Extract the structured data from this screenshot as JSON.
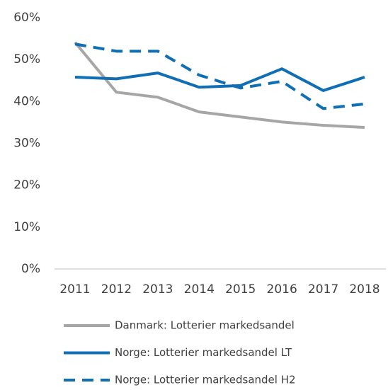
{
  "chart_data": {
    "type": "line",
    "categories": [
      "2011",
      "2012",
      "2013",
      "2014",
      "2015",
      "2016",
      "2017",
      "2018"
    ],
    "series": [
      {
        "name": "Danmark: Lotterier markedsandel",
        "color": "#a6a6a6",
        "style": "solid",
        "values": [
          54.1,
          42.2,
          41.0,
          37.5,
          36.3,
          35.1,
          34.3,
          33.8
        ]
      },
      {
        "name": "Norge: Lotterier markedsandel LT",
        "color": "#0f6eb4",
        "style": "solid",
        "values": [
          45.8,
          45.4,
          46.8,
          43.4,
          43.8,
          47.8,
          42.6,
          45.8
        ]
      },
      {
        "name": "Norge: Lotterier markedsandel H2",
        "color": "#0f6eb4",
        "style": "dashed",
        "values": [
          53.7,
          52.0,
          52.0,
          46.3,
          43.2,
          44.8,
          38.3,
          39.4
        ]
      }
    ],
    "ylim": [
      0,
      60
    ],
    "yticks": [
      {
        "value": 0,
        "label": "0%"
      },
      {
        "value": 10,
        "label": "10%"
      },
      {
        "value": 20,
        "label": "20%"
      },
      {
        "value": 30,
        "label": "30%"
      },
      {
        "value": 40,
        "label": "40%"
      },
      {
        "value": 50,
        "label": "50%"
      },
      {
        "value": 60,
        "label": "60%"
      }
    ],
    "grid": false,
    "legend": "bottom"
  }
}
